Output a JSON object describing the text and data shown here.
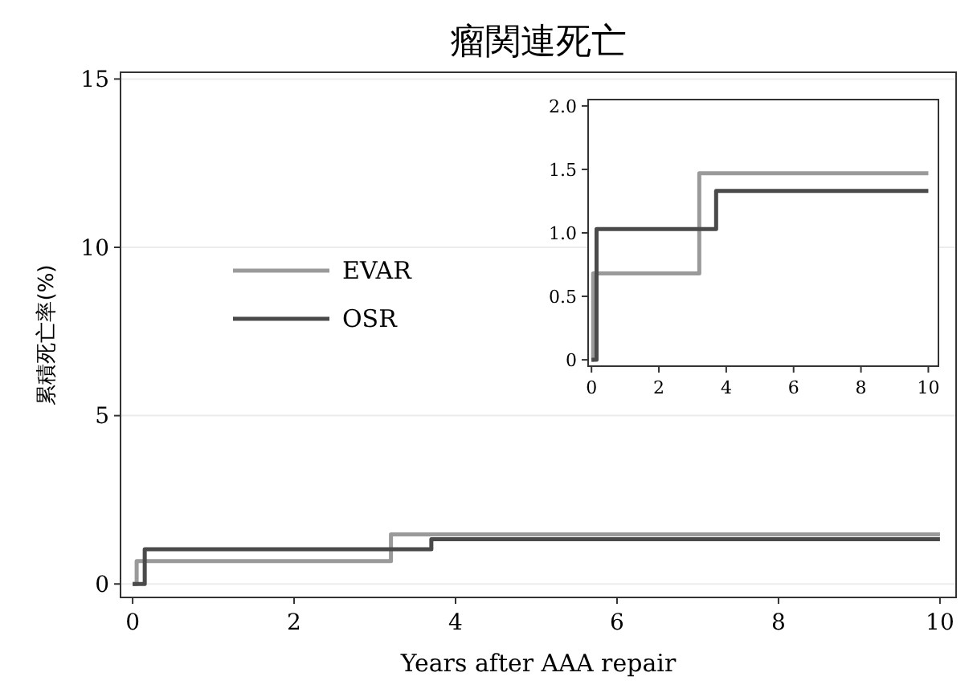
{
  "chart_data": [
    {
      "type": "step",
      "title": "瘤関連死亡",
      "xlabel": "Years after AAA repair",
      "ylabel": "累積死亡率(%)",
      "xlim": [
        -0.15,
        10.2
      ],
      "ylim": [
        -0.4,
        15.2
      ],
      "xticks": [
        0,
        2,
        4,
        6,
        8,
        10
      ],
      "yticks": [
        0,
        5,
        10,
        15
      ],
      "grid": "y",
      "legend": "left",
      "series": [
        {
          "name": "EVAR",
          "color": "#9a9a9a",
          "x": [
            0,
            0.05,
            3.2,
            10
          ],
          "values": [
            0,
            0.68,
            1.47,
            1.47
          ]
        },
        {
          "name": "OSR",
          "color": "#4a4a4a",
          "x": [
            0,
            0.15,
            3.7,
            10
          ],
          "values": [
            0,
            1.03,
            1.33,
            1.33
          ]
        }
      ]
    },
    {
      "type": "step",
      "xlim": [
        -0.1,
        10.3
      ],
      "ylim": [
        -0.05,
        2.05
      ],
      "xticks": [
        0,
        2,
        4,
        6,
        8,
        10
      ],
      "yticks": [
        0,
        0.5,
        {
          "value": 1,
          "label": "1.0"
        },
        1.5,
        {
          "value": 2,
          "label": "2.0"
        }
      ],
      "series": [
        {
          "color": "#9a9a9a",
          "x": [
            0,
            0.05,
            3.2,
            10
          ],
          "values": [
            0,
            0.68,
            1.47,
            1.47
          ]
        },
        {
          "color": "#4a4a4a",
          "x": [
            0,
            0.15,
            3.7,
            10
          ],
          "values": [
            0,
            1.03,
            1.33,
            1.33
          ]
        }
      ]
    }
  ]
}
